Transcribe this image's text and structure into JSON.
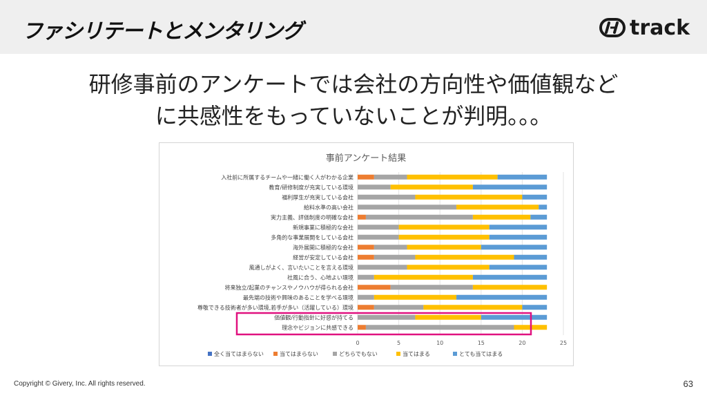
{
  "header": {
    "title": "ファシリテートとメンタリング",
    "logo_text": "track"
  },
  "headline": {
    "line1": "研修事前のアンケートでは会社の方向性や価値観など",
    "line2": "に共感性をもっていないことが判明。。。"
  },
  "footer": {
    "copyright": "Copyright © Givery, Inc. All rights reserved.",
    "page_number": "63"
  },
  "colors": {
    "header_bg": "#efefef",
    "highlight": "#e0117f",
    "series": [
      "#4472c4",
      "#ed7d31",
      "#a5a5a5",
      "#ffc000",
      "#5b9bd5"
    ]
  },
  "chart_data": {
    "type": "bar",
    "orientation": "horizontal",
    "stacked": true,
    "title": "事前アンケート結果",
    "xlim": [
      0,
      25
    ],
    "xticks": [
      0,
      5,
      10,
      15,
      20,
      25
    ],
    "grid": true,
    "legend_position": "bottom",
    "categories": [
      "入社前に所属するチームや一緒に働く人がわかる企業",
      "教育/研修制度が充実している環境",
      "福利厚生が充実している会社",
      "給料水準の高い会社",
      "実力主義、評価制度の明確な会社",
      "新規事業に積極的な会社",
      "多角的な事業展開をしている会社",
      "海外展開に積極的な会社",
      "経営が安定している会社",
      "風通しがよく、言いたいことを言える環境",
      "社風に合う、心地よい環境",
      "将来独立/起業のチャンスやノウハウが得られる会社",
      "最先端の技術や興味のあることを学べる環境",
      "尊敬できる技術者が多い環境,若手が多い（活躍している）環境",
      "価値観/行動指針に好感が持てる",
      "理念やビジョンに共感できる"
    ],
    "series": [
      {
        "name": "全く当てはまらない",
        "values": [
          0,
          0,
          0,
          0,
          0,
          0,
          0,
          0,
          0,
          0,
          0,
          0,
          0,
          0,
          0,
          0
        ]
      },
      {
        "name": "当てはまらない",
        "values": [
          2,
          0,
          0,
          0,
          1,
          0,
          0,
          2,
          2,
          0,
          0,
          4,
          0,
          2,
          0,
          1
        ]
      },
      {
        "name": "どちらでもない",
        "values": [
          4,
          4,
          7,
          12,
          13,
          5,
          5,
          4,
          5,
          6,
          2,
          10,
          2,
          6,
          7,
          18
        ]
      },
      {
        "name": "当てはまる",
        "values": [
          11,
          10,
          13,
          10,
          7,
          11,
          11,
          9,
          12,
          10,
          12,
          9,
          10,
          12,
          8,
          4
        ]
      },
      {
        "name": "とても当てはまる",
        "values": [
          6,
          9,
          3,
          1,
          2,
          7,
          7,
          8,
          4,
          7,
          9,
          0,
          11,
          3,
          8,
          0
        ]
      }
    ],
    "highlight_rows": [
      14,
      15
    ]
  }
}
